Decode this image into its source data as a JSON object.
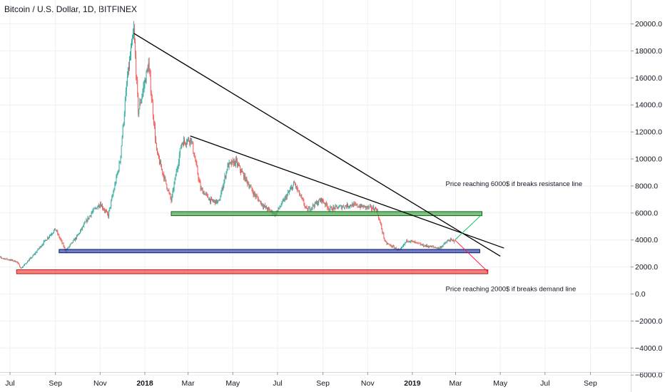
{
  "header": {
    "title": "Bitcoin / U.S. Dollar, 1D, BITFINEX"
  },
  "chart_data": {
    "type": "candlestick",
    "title": "Bitcoin / U.S. Dollar, 1D, BITFINEX",
    "ylim": [
      -6000,
      21000
    ],
    "y_ticks": [
      20000,
      18000,
      16000,
      14000,
      12000,
      10000,
      8000,
      6000,
      4000,
      2000,
      0,
      -2000,
      -4000,
      -6000
    ],
    "y_tick_labels": [
      "20000.0",
      "18000.0",
      "16000.0",
      "14000.0",
      "12000.0",
      "10000.0",
      "8000.0",
      "6000.0",
      "4000.0",
      "2000.0",
      "0.0",
      "−2000.0",
      "−4000.0",
      "−6000.0"
    ],
    "x_ticks": [
      {
        "date": "2017-07-01",
        "label": "Jul",
        "bold": false
      },
      {
        "date": "2017-09-01",
        "label": "Sep",
        "bold": false
      },
      {
        "date": "2017-11-01",
        "label": "Nov",
        "bold": false
      },
      {
        "date": "2018-01-01",
        "label": "2018",
        "bold": true
      },
      {
        "date": "2018-03-01",
        "label": "Mar",
        "bold": false
      },
      {
        "date": "2018-05-01",
        "label": "May",
        "bold": false
      },
      {
        "date": "2018-07-01",
        "label": "Jul",
        "bold": false
      },
      {
        "date": "2018-09-01",
        "label": "Sep",
        "bold": false
      },
      {
        "date": "2018-11-01",
        "label": "Nov",
        "bold": false
      },
      {
        "date": "2019-01-01",
        "label": "2019",
        "bold": true
      },
      {
        "date": "2019-03-01",
        "label": "Mar",
        "bold": false
      },
      {
        "date": "2019-05-01",
        "label": "May",
        "bold": false
      },
      {
        "date": "2019-07-01",
        "label": "Jul",
        "bold": false
      },
      {
        "date": "2019-09-01",
        "label": "Sep",
        "bold": false
      }
    ],
    "price_path": [
      [
        "2017-06-10",
        2800
      ],
      [
        "2017-07-10",
        2400
      ],
      [
        "2017-07-16",
        1900
      ],
      [
        "2017-08-01",
        2800
      ],
      [
        "2017-08-20",
        4100
      ],
      [
        "2017-09-01",
        4800
      ],
      [
        "2017-09-15",
        3200
      ],
      [
        "2017-10-01",
        4300
      ],
      [
        "2017-10-20",
        6000
      ],
      [
        "2017-11-01",
        6700
      ],
      [
        "2017-11-12",
        5800
      ],
      [
        "2017-11-28",
        9800
      ],
      [
        "2017-12-08",
        16000
      ],
      [
        "2017-12-17",
        19500
      ],
      [
        "2017-12-23",
        13500
      ],
      [
        "2018-01-06",
        17000
      ],
      [
        "2018-01-17",
        10500
      ],
      [
        "2018-02-06",
        6900
      ],
      [
        "2018-02-20",
        11200
      ],
      [
        "2018-03-05",
        11500
      ],
      [
        "2018-03-18",
        7800
      ],
      [
        "2018-04-01",
        6900
      ],
      [
        "2018-04-12",
        6800
      ],
      [
        "2018-04-24",
        9500
      ],
      [
        "2018-05-05",
        9800
      ],
      [
        "2018-05-30",
        7400
      ],
      [
        "2018-06-12",
        6500
      ],
      [
        "2018-06-28",
        5900
      ],
      [
        "2018-07-24",
        8200
      ],
      [
        "2018-08-10",
        6200
      ],
      [
        "2018-08-30",
        7000
      ],
      [
        "2018-09-10",
        6300
      ],
      [
        "2018-10-10",
        6600
      ],
      [
        "2018-11-13",
        6300
      ],
      [
        "2018-11-25",
        3800
      ],
      [
        "2018-12-15",
        3200
      ],
      [
        "2018-12-25",
        4000
      ],
      [
        "2019-01-15",
        3600
      ],
      [
        "2019-02-07",
        3400
      ],
      [
        "2019-02-20",
        4000
      ],
      [
        "2019-02-28",
        3900
      ]
    ],
    "trend_lines": [
      {
        "name": "upper-trendline",
        "color": "#000000",
        "from": [
          "2017-12-17",
          19300
        ],
        "to": [
          "2019-05-01",
          2800
        ]
      },
      {
        "name": "lower-trendline",
        "color": "#000000",
        "from": [
          "2018-03-04",
          11700
        ],
        "to": [
          "2019-05-06",
          3400
        ]
      },
      {
        "name": "projection-up",
        "color": "#00c853",
        "from": [
          "2019-02-28",
          4000
        ],
        "to": [
          "2019-04-06",
          5900
        ]
      },
      {
        "name": "projection-down",
        "color": "#ff1744",
        "from": [
          "2019-02-28",
          4000
        ],
        "to": [
          "2019-04-14",
          1650
        ]
      }
    ],
    "zones": [
      {
        "name": "resistance-zone",
        "fill": "#4caf50",
        "stroke": "#1b5e20",
        "from": "2018-02-06",
        "to": "2019-04-06",
        "low": 5800,
        "high": 6100
      },
      {
        "name": "support-zone",
        "fill": "#3f51b5",
        "stroke": "#0d1a6e",
        "from": "2017-09-06",
        "to": "2019-04-03",
        "low": 3050,
        "high": 3300
      },
      {
        "name": "demand-zone",
        "fill": "#ef5350",
        "stroke": "#b71c1c",
        "from": "2017-07-10",
        "to": "2019-04-14",
        "low": 1500,
        "high": 1800
      }
    ],
    "annotations": [
      {
        "text": "Price reaching 6000$ if breaks resistance line",
        "date": "2019-03-01",
        "y": 8000
      },
      {
        "text": "Price reaching 2000$ if breaks demand line",
        "date": "2019-03-01",
        "y": 200
      }
    ],
    "grid": true,
    "colors": {
      "up": "#26a69a",
      "down": "#ef5350",
      "grid": "#eef0f3",
      "axis": "#d6d8dc"
    }
  }
}
